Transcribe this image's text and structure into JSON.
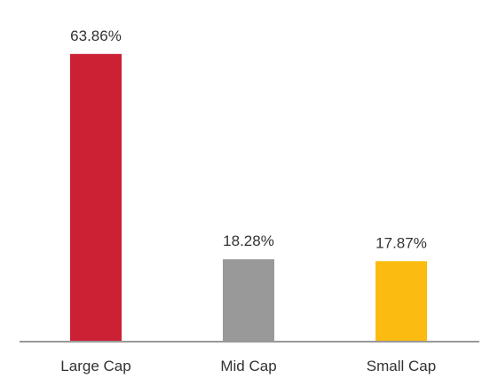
{
  "chart_data": {
    "type": "bar",
    "categories": [
      "Large Cap",
      "Mid Cap",
      "Small Cap"
    ],
    "values": [
      63.86,
      18.28,
      17.87
    ],
    "data_labels": [
      "63.86%",
      "18.28%",
      "17.87%"
    ],
    "colors": [
      "#cc2035",
      "#999999",
      "#fbbb10"
    ],
    "axis_color": "#999999",
    "ylim": [
      0,
      65
    ],
    "grid": false,
    "legend": "none",
    "title": "",
    "xlabel": "",
    "ylabel": ""
  }
}
